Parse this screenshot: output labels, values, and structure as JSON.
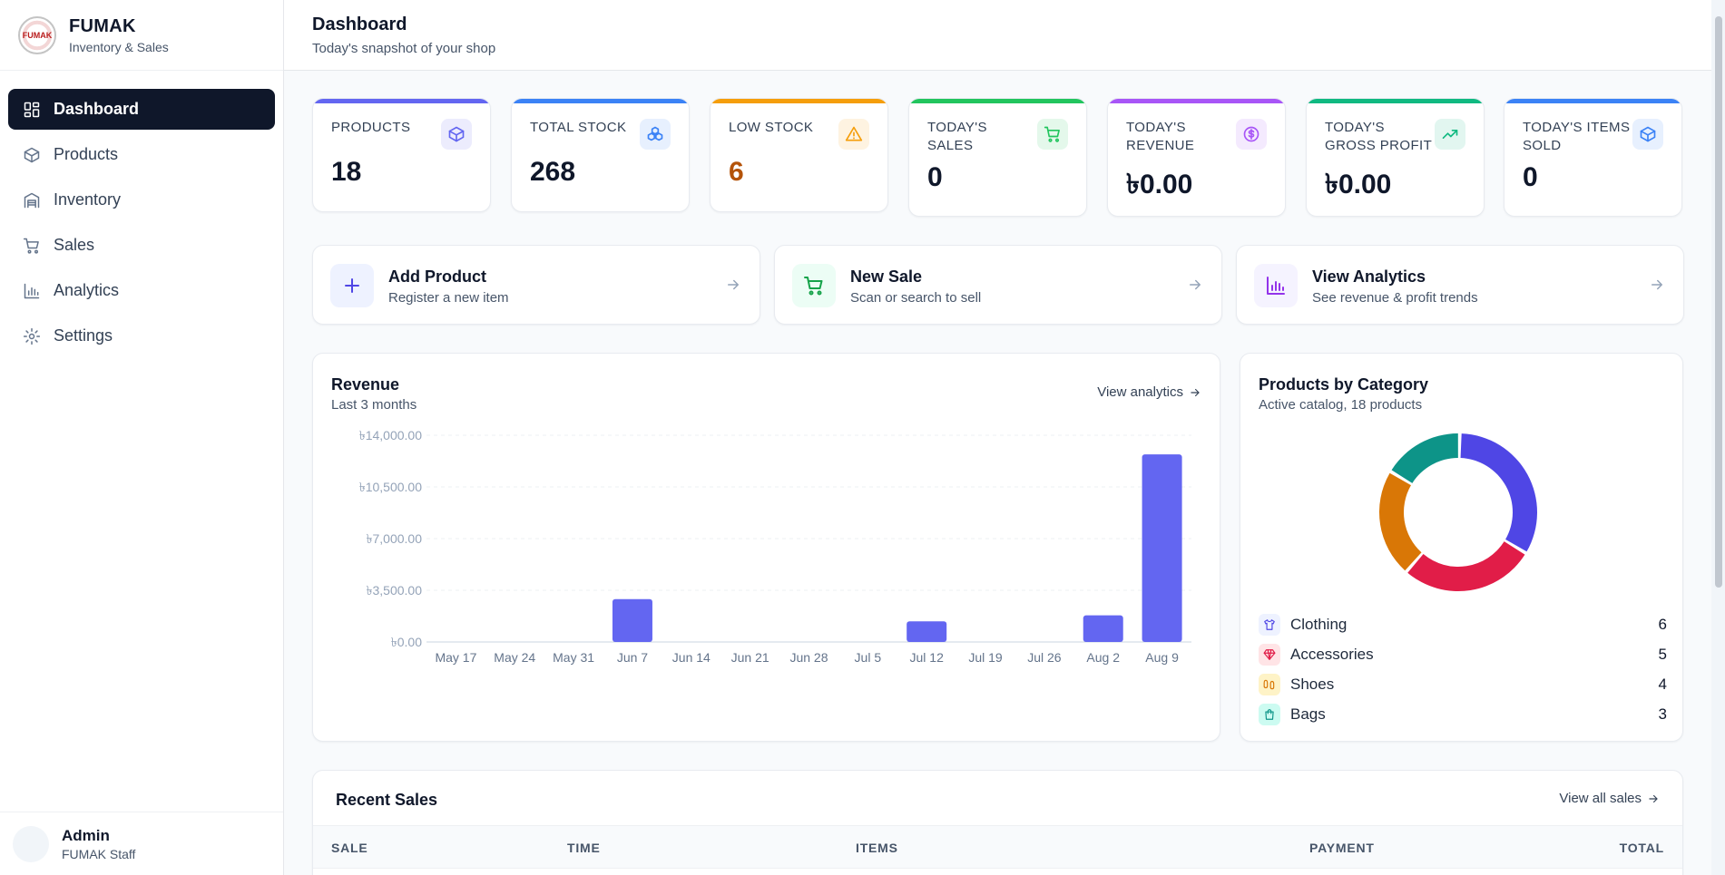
{
  "brand": {
    "name": "FUMAK",
    "subtitle": "Inventory & Sales",
    "logo_text": "FUMAK"
  },
  "nav": [
    {
      "label": "Dashboard",
      "icon": "dashboard-icon",
      "active": true
    },
    {
      "label": "Products",
      "icon": "box-icon"
    },
    {
      "label": "Inventory",
      "icon": "warehouse-icon"
    },
    {
      "label": "Sales",
      "icon": "cart-icon"
    },
    {
      "label": "Analytics",
      "icon": "bar-chart-icon"
    },
    {
      "label": "Settings",
      "icon": "gear-icon"
    }
  ],
  "user": {
    "name": "Admin",
    "role": "FUMAK Staff"
  },
  "header": {
    "title": "Dashboard",
    "subtitle": "Today's snapshot of your shop"
  },
  "stats": [
    {
      "label": "PRODUCTS",
      "value": "18",
      "color": "#6366f1",
      "icon": "box-icon"
    },
    {
      "label": "TOTAL STOCK",
      "value": "268",
      "color": "#3b82f6",
      "icon": "cubes-icon"
    },
    {
      "label": "LOW STOCK",
      "value": "6",
      "color": "#f59e0b",
      "icon": "warning-icon"
    },
    {
      "label": "TODAY'S SALES",
      "value": "0",
      "color": "#22c55e",
      "icon": "cart-icon"
    },
    {
      "label": "TODAY'S REVENUE",
      "value": "৳0.00",
      "color": "#a855f7",
      "icon": "dollar-icon"
    },
    {
      "label": "TODAY'S GROSS PROFIT",
      "value": "৳0.00",
      "color": "#10b981",
      "icon": "trend-up-icon"
    },
    {
      "label": "TODAY'S ITEMS SOLD",
      "value": "0",
      "color": "#3b82f6",
      "icon": "box-icon"
    }
  ],
  "quick_actions": [
    {
      "title": "Add Product",
      "subtitle": "Register a new item",
      "icon": "plus-icon",
      "color": "#4f46e5",
      "bg": "#eef2ff"
    },
    {
      "title": "New Sale",
      "subtitle": "Scan or search to sell",
      "icon": "cart-icon",
      "color": "#16a34a",
      "bg": "#ecfdf5"
    },
    {
      "title": "View Analytics",
      "subtitle": "See revenue & profit trends",
      "icon": "bar-chart-icon",
      "color": "#9333ea",
      "bg": "#f5f3ff"
    }
  ],
  "revenue": {
    "title": "Revenue",
    "subtitle": "Last 3 months",
    "link": "View analytics"
  },
  "category": {
    "title": "Products by Category",
    "subtitle": "Active catalog, 18 products"
  },
  "recent": {
    "title": "Recent Sales",
    "link": "View all sales",
    "columns": [
      "SALE",
      "TIME",
      "ITEMS",
      "PAYMENT",
      "TOTAL"
    ]
  },
  "chart_data": [
    {
      "type": "bar",
      "title": "Revenue",
      "subtitle": "Last 3 months",
      "categories": [
        "May 17",
        "May 24",
        "May 31",
        "Jun 7",
        "Jun 14",
        "Jun 21",
        "Jun 28",
        "Jul 5",
        "Jul 12",
        "Jul 19",
        "Jul 26",
        "Aug 2",
        "Aug 9"
      ],
      "values": [
        0,
        0,
        0,
        2900,
        0,
        0,
        0,
        0,
        1400,
        0,
        0,
        1800,
        12700
      ],
      "yticks": [
        "৳0.00",
        "৳3,500.00",
        "৳7,000.00",
        "৳10,500.00",
        "৳14,000.00"
      ],
      "ylim": [
        0,
        14000
      ],
      "color": "#6366f1",
      "grid": true
    },
    {
      "type": "pie",
      "title": "Products by Category",
      "subtitle": "Active catalog, 18 products",
      "categories": [
        "Clothing",
        "Accessories",
        "Shoes",
        "Bags"
      ],
      "values": [
        6,
        5,
        4,
        3
      ],
      "colors": [
        "#4f46e5",
        "#e11d48",
        "#d97706",
        "#0d9488"
      ],
      "icon_bg": [
        "#eef2ff",
        "#ffe4e6",
        "#fef3c7",
        "#ccfbf1"
      ]
    }
  ]
}
